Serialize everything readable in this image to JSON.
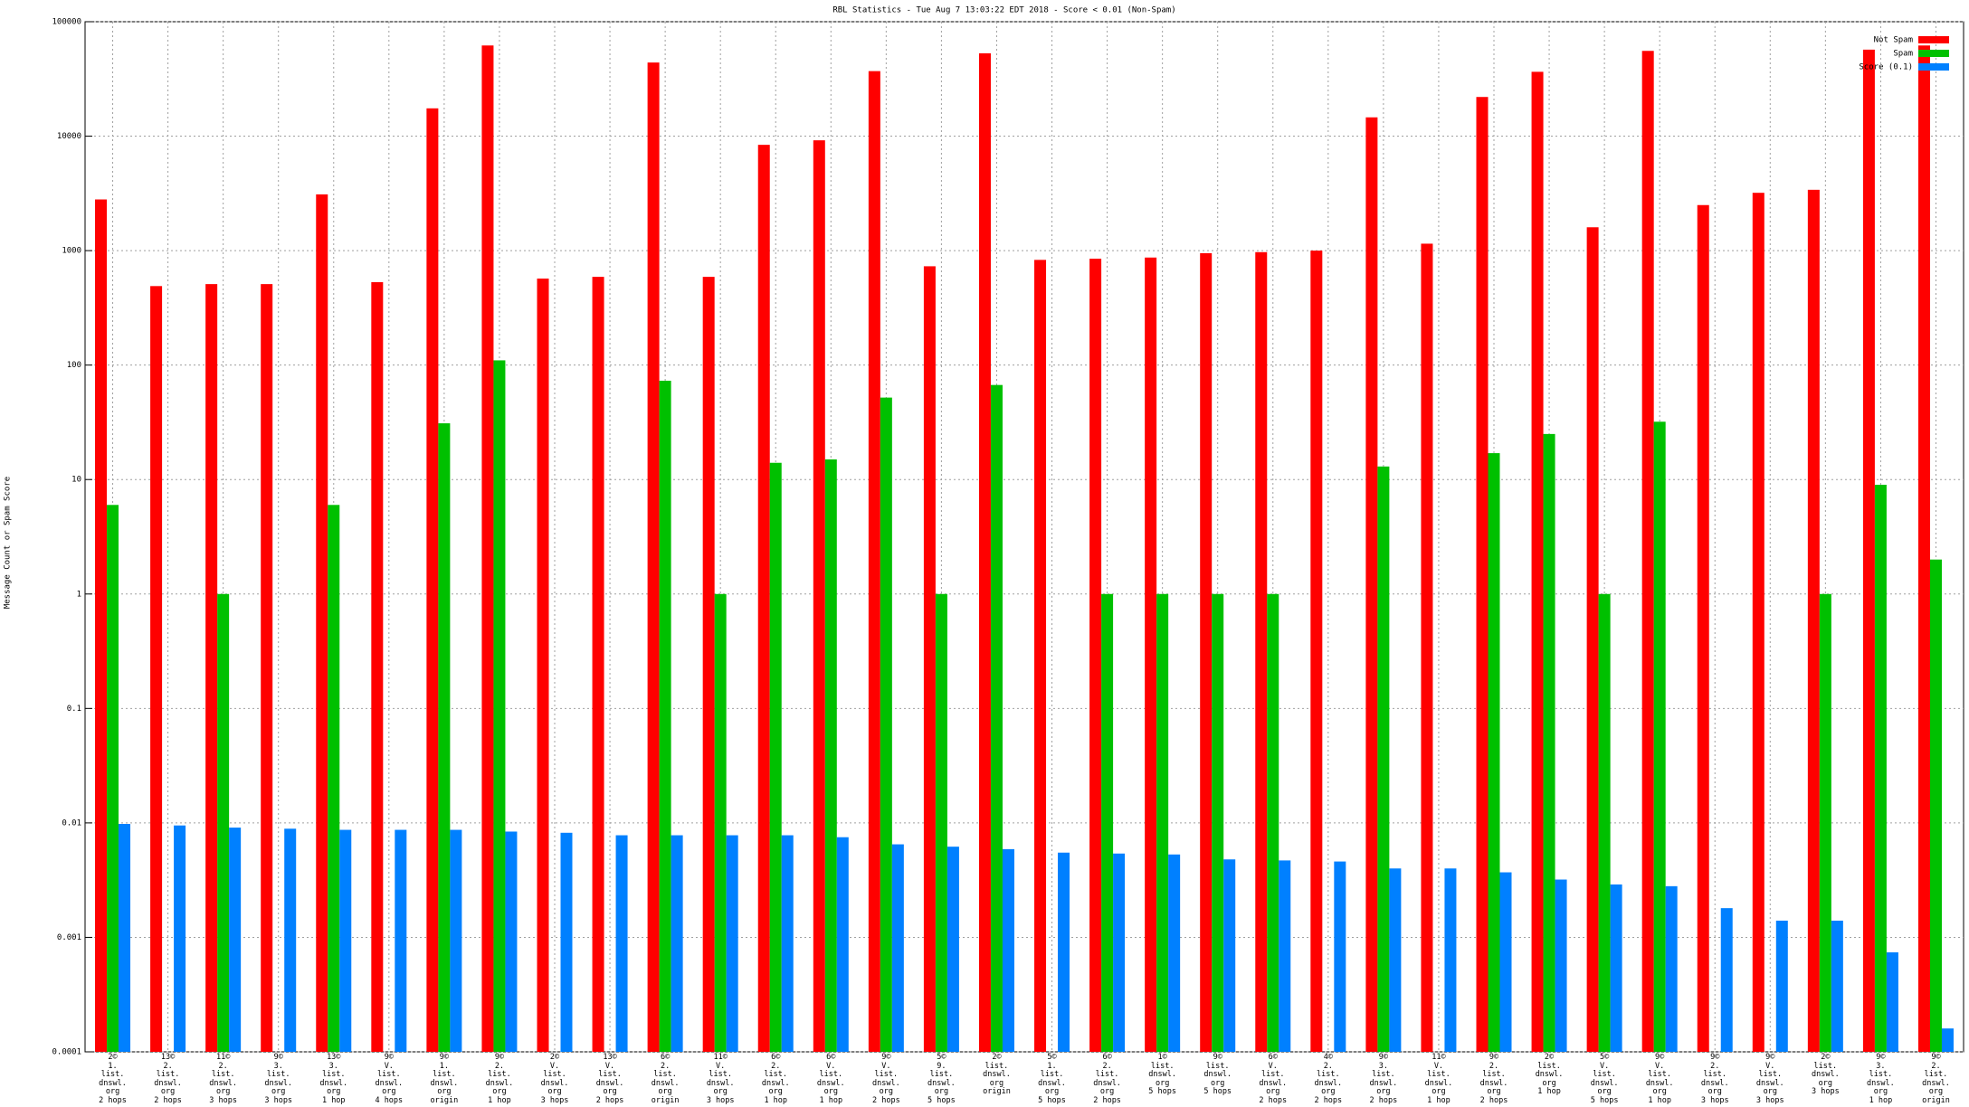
{
  "chart_data": {
    "type": "bar",
    "title": "RBL Statistics - Tue Aug  7 13:03:22 EDT 2018 - Score < 0.01 (Non-Spam)",
    "ylabel": "Message Count or Spam Score",
    "categories": [
      "2©\n1.\nlist.\ndnswl.\norg\n2 hops",
      "13©\n2.\nlist.\ndnswl.\norg\n2 hops",
      "11©\n2.\nlist.\ndnswl.\norg\n3 hops",
      "9©\n3.\nlist.\ndnswl.\norg\n3 hops",
      "13©\n3.\nlist.\ndnswl.\norg\n1 hop",
      "9©\nV.\nlist.\ndnswl.\norg\n4 hops",
      "9©\n1.\nlist.\ndnswl.\norg\norigin",
      "9©\n2.\nlist.\ndnswl.\norg\n1 hop",
      "2©\nV.\nlist.\ndnswl.\norg\n3 hops",
      "13©\nV.\nlist.\ndnswl.\norg\n2 hops",
      "6©\n2.\nlist.\ndnswl.\norg\norigin",
      "11©\nV.\nlist.\ndnswl.\norg\n3 hops",
      "6©\n2.\nlist.\ndnswl.\norg\n1 hop",
      "6©\nV.\nlist.\ndnswl.\norg\n1 hop",
      "9©\nV.\nlist.\ndnswl.\norg\n2 hops",
      "5©\n9.\nlist.\ndnswl.\norg\n5 hops",
      "2©\nlist.\ndnswl.\norg\norigin",
      "5©\n1.\nlist.\ndnswl.\norg\n5 hops",
      "6©\n2.\nlist.\ndnswl.\norg\n2 hops",
      "1©\nlist.\ndnswl.\norg\n5 hops",
      "9©\nlist.\ndnswl.\norg\n5 hops",
      "6©\nV.\nlist.\ndnswl.\norg\n2 hops",
      "4©\n2.\nlist.\ndnswl.\norg\n2 hops",
      "9©\n3.\nlist.\ndnswl.\norg\n2 hops",
      "11©\nV.\nlist.\ndnswl.\norg\n1 hop",
      "9©\n2.\nlist.\ndnswl.\norg\n2 hops",
      "2©\nlist.\ndnswl.\norg\n1 hop",
      "5©\nV.\nlist.\ndnswl.\norg\n5 hops",
      "9©\nV.\nlist.\ndnswl.\norg\n1 hop",
      "9©\n2.\nlist.\ndnswl.\norg\n3 hops",
      "9©\nV.\nlist.\ndnswl.\norg\n3 hops",
      "2©\nlist.\ndnswl.\norg\n3 hops",
      "9©\n3.\nlist.\ndnswl.\norg\n1 hop",
      "9©\n2.\nlist.\ndnswl.\norg\norigin"
    ],
    "series": [
      {
        "name": "Not Spam",
        "color": "#ff0000",
        "values": [
          2800,
          490,
          510,
          510,
          3100,
          530,
          17500,
          62000,
          570,
          590,
          44000,
          590,
          8400,
          9200,
          37000,
          730,
          53000,
          830,
          850,
          870,
          950,
          970,
          1000,
          14600,
          1150,
          22000,
          36500,
          1600,
          55600,
          2500,
          3200,
          3400,
          57000,
          62000
        ]
      },
      {
        "name": "Spam",
        "color": "#00c000",
        "values": [
          6,
          null,
          1,
          null,
          6,
          null,
          31,
          110,
          null,
          null,
          73,
          1,
          14,
          15,
          52,
          1,
          67,
          null,
          1,
          1,
          1,
          1,
          null,
          13,
          null,
          17,
          25,
          1,
          32,
          null,
          null,
          1,
          9,
          2
        ]
      },
      {
        "name": "Score (0.1)",
        "color": "#0080ff",
        "values": [
          0.0098,
          0.0095,
          0.0091,
          0.0089,
          0.0087,
          0.0087,
          0.0087,
          0.0084,
          0.0082,
          0.0078,
          0.0078,
          0.0078,
          0.0078,
          0.0075,
          0.0065,
          0.0062,
          0.0059,
          0.0055,
          0.0054,
          0.0053,
          0.0048,
          0.0047,
          0.0046,
          0.004,
          0.004,
          0.0037,
          0.0032,
          0.0029,
          0.0028,
          0.0018,
          0.0014,
          0.0014,
          0.00074,
          0.00016
        ]
      }
    ],
    "ylim": [
      0.0001,
      100000
    ],
    "yticks": [
      0.0001,
      0.001,
      0.01,
      0.1,
      1,
      10,
      100,
      1000,
      10000,
      100000
    ],
    "log_scale": true,
    "grid": true,
    "legend": "top-right"
  }
}
